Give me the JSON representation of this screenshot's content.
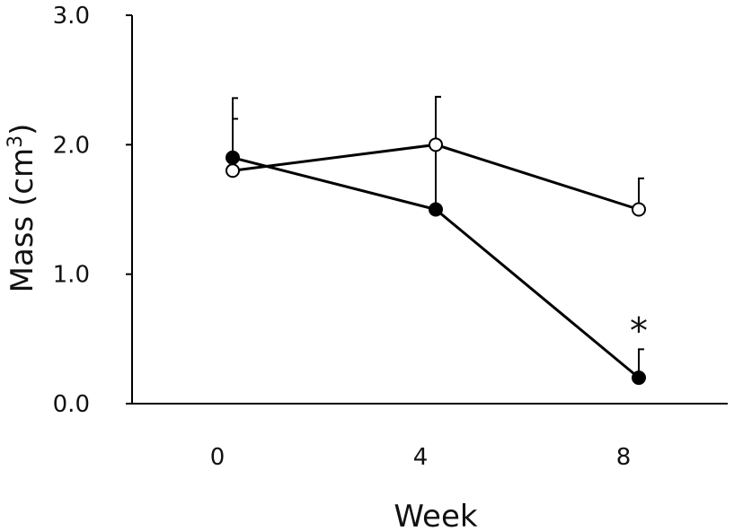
{
  "chart_data": {
    "type": "line",
    "xlabel": "Week",
    "ylabel_main": "Mass (cm",
    "ylabel_sup": "3",
    "ylabel_close": ")",
    "x_ticks": [
      "0",
      "4",
      "8"
    ],
    "y_ticks": [
      "0.0",
      "1.0",
      "2.0",
      "3.0"
    ],
    "ylim": [
      0,
      3
    ],
    "grid": false,
    "series": [
      {
        "marker": "open-circle",
        "color": "#000000",
        "x": [
          0,
          4,
          8
        ],
        "values": [
          1.8,
          2.0,
          1.5
        ],
        "error_upper": [
          0.4,
          0.37,
          0.24
        ]
      },
      {
        "marker": "filled-circle",
        "color": "#000000",
        "x": [
          0,
          4,
          8
        ],
        "values": [
          1.9,
          1.5,
          0.2
        ],
        "error_upper": [
          0.46,
          0.87,
          0.22
        ]
      }
    ],
    "annotations": [
      {
        "text": "*",
        "x": 8,
        "y": 0.62
      }
    ]
  }
}
